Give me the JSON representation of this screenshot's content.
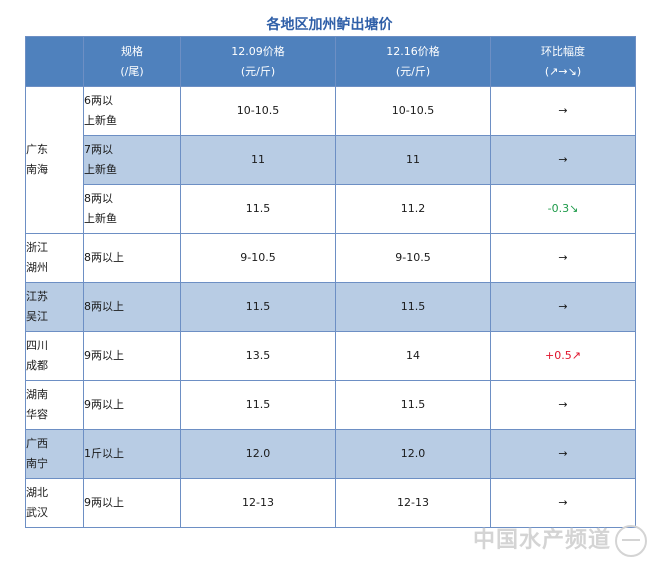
{
  "title": "各地区加州鲈出塘价",
  "header": {
    "spec_line1": "规格",
    "spec_line2": "(/尾)",
    "p1_line1": "12.09价格",
    "p1_line2": "(元/斤)",
    "p2_line1": "12.16价格",
    "p2_line2": "(元/斤)",
    "chg_line1": "环比幅度",
    "chg_line2": "(↗→↘)"
  },
  "rows": [
    {
      "region_l1": "广东",
      "region_l2": "南海",
      "spec_l1": "6两以",
      "spec_l2": "上新鱼",
      "p1": "10-10.5",
      "p2": "10-10.5",
      "chg": "→",
      "trend": "flat"
    },
    {
      "region_l1": "",
      "region_l2": "",
      "spec_l1": "7两以",
      "spec_l2": "上新鱼",
      "p1": "11",
      "p2": "11",
      "chg": "→",
      "trend": "flat"
    },
    {
      "region_l1": "",
      "region_l2": "",
      "spec_l1": "8两以",
      "spec_l2": "上新鱼",
      "p1": "11.5",
      "p2": "11.2",
      "chg": "-0.3↘",
      "trend": "down"
    },
    {
      "region_l1": "浙江",
      "region_l2": "湖州",
      "spec_l1": "8两以上",
      "spec_l2": "",
      "p1": "9-10.5",
      "p2": "9-10.5",
      "chg": "→",
      "trend": "flat"
    },
    {
      "region_l1": "江苏",
      "region_l2": "吴江",
      "spec_l1": "8两以上",
      "spec_l2": "",
      "p1": "11.5",
      "p2": "11.5",
      "chg": "→",
      "trend": "flat"
    },
    {
      "region_l1": "四川",
      "region_l2": "成都",
      "spec_l1": "9两以上",
      "spec_l2": "",
      "p1": "13.5",
      "p2": "14",
      "chg": "+0.5↗",
      "trend": "up"
    },
    {
      "region_l1": "湖南",
      "region_l2": "华容",
      "spec_l1": "9两以上",
      "spec_l2": "",
      "p1": "11.5",
      "p2": "11.5",
      "chg": "→",
      "trend": "flat"
    },
    {
      "region_l1": "广西",
      "region_l2": "南宁",
      "spec_l1": "1斤以上",
      "spec_l2": "",
      "p1": "12.0",
      "p2": "12.0",
      "chg": "→",
      "trend": "flat"
    },
    {
      "region_l1": "湖北",
      "region_l2": "武汉",
      "spec_l1": "9两以上",
      "spec_l2": "",
      "p1": "12-13",
      "p2": "12-13",
      "chg": "→",
      "trend": "flat"
    }
  ],
  "colors": {
    "title": "#2f5fa8",
    "header_bg": "#4f81bd",
    "shade_bg": "#b8cce4",
    "down": "#1e9b4a",
    "up": "#e0142c"
  },
  "watermark": "中国水产频道",
  "icons": {
    "watermark_globe": "globe-icon"
  }
}
